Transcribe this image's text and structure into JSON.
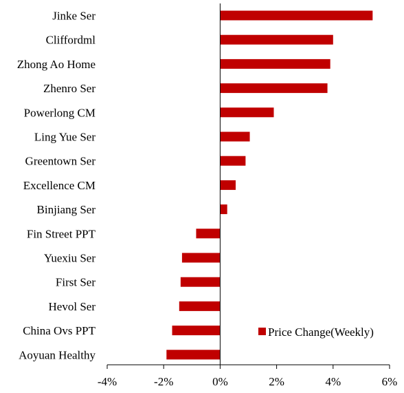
{
  "chart_data": {
    "type": "bar",
    "orientation": "horizontal",
    "categories": [
      "Jinke Ser",
      "Cliffordml",
      "Zhong Ao Home",
      "Zhenro Ser",
      "Powerlong CM",
      "Ling Yue Ser",
      "Greentown Ser",
      "Excellence CM",
      "Binjiang Ser",
      "Fin Street PPT",
      "Yuexiu Ser",
      "First Ser",
      "Hevol Ser",
      "China Ovs PPT",
      "Aoyuan Healthy"
    ],
    "series": [
      {
        "name": "Price Change(Weekly)",
        "color": "#c00000",
        "values": [
          5.4,
          4.0,
          3.9,
          3.8,
          1.9,
          1.05,
          0.9,
          0.55,
          0.25,
          -0.85,
          -1.35,
          -1.4,
          -1.45,
          -1.7,
          -1.9
        ]
      }
    ],
    "xlim": [
      -4,
      6
    ],
    "xticks": [
      -4,
      -2,
      0,
      2,
      4,
      6
    ],
    "xtick_labels": [
      "-4%",
      "-2%",
      "0%",
      "2%",
      "4%",
      "6%"
    ],
    "title": "",
    "xlabel": "",
    "ylabel": "",
    "legend": "bottom-right",
    "grid": false
  }
}
